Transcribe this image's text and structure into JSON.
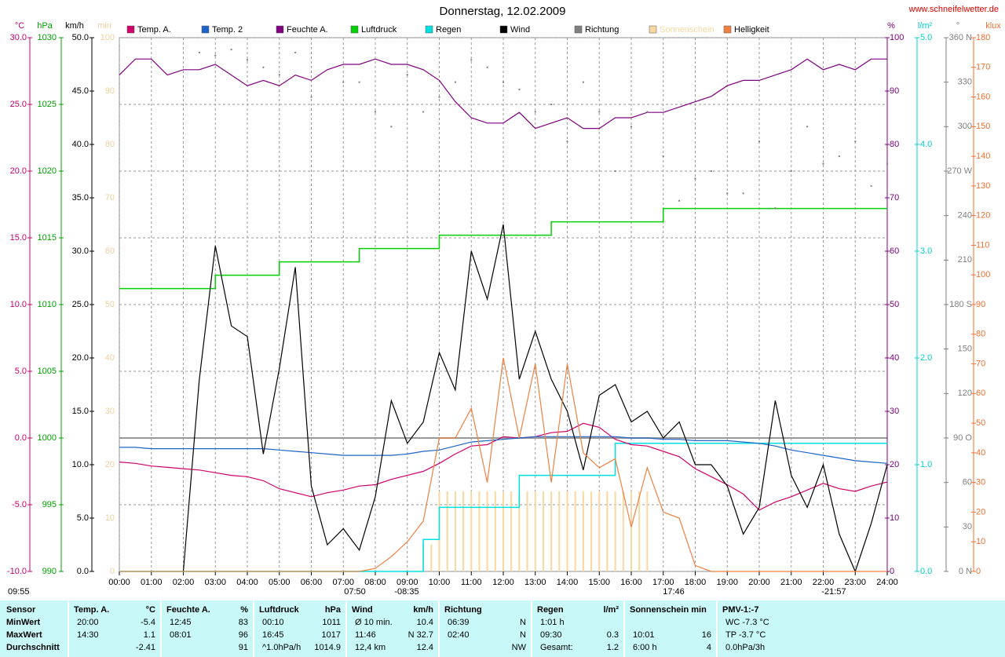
{
  "chart_data": {
    "type": "line",
    "title": "Donnerstag, 12.02.2009",
    "source": "www.schneifelwetter.de",
    "xlim": [
      0,
      24
    ],
    "xticks": [
      {
        "value": 0,
        "label": "00:00"
      },
      {
        "value": 1,
        "label": "01:00"
      },
      {
        "value": 2,
        "label": "02:00"
      },
      {
        "value": 3,
        "label": "03:00"
      },
      {
        "value": 4,
        "label": "04:00"
      },
      {
        "value": 5,
        "label": "05:00"
      },
      {
        "value": 6,
        "label": "06:00"
      },
      {
        "value": 7,
        "label": "07:00"
      },
      {
        "value": 8,
        "label": "08:00"
      },
      {
        "value": 9,
        "label": "09:00"
      },
      {
        "value": 10,
        "label": "10:00"
      },
      {
        "value": 11,
        "label": "11:00"
      },
      {
        "value": 12,
        "label": "12:00"
      },
      {
        "value": 13,
        "label": "13:00"
      },
      {
        "value": 14,
        "label": "14:00"
      },
      {
        "value": 15,
        "label": "15:00"
      },
      {
        "value": 16,
        "label": "16:00"
      },
      {
        "value": 17,
        "label": "17:00"
      },
      {
        "value": 18,
        "label": "18:00"
      },
      {
        "value": 19,
        "label": "19:00"
      },
      {
        "value": 20,
        "label": "20:00"
      },
      {
        "value": 21,
        "label": "21:00"
      },
      {
        "value": 22,
        "label": "22:00"
      },
      {
        "value": 23,
        "label": "23:00"
      },
      {
        "value": 24,
        "label": "24:00"
      }
    ],
    "grid": true,
    "axes": [
      {
        "label": "°C",
        "color": "#c8006e",
        "lim": [
          -10,
          30
        ],
        "ticks": [
          {
            "value": -10,
            "label": "-10.0"
          },
          {
            "value": -5,
            "label": "-5.0"
          },
          {
            "value": 0,
            "label": "0.0"
          },
          {
            "value": 5,
            "label": "5.0"
          },
          {
            "value": 10,
            "label": "10.0"
          },
          {
            "value": 15,
            "label": "15.0"
          },
          {
            "value": 20,
            "label": "20.0"
          },
          {
            "value": 25,
            "label": "25.0"
          },
          {
            "value": 30,
            "label": "30.0"
          }
        ]
      },
      {
        "label": "hPa",
        "color": "#00a000",
        "lim": [
          990,
          1030
        ],
        "ticks": [
          990,
          995,
          1000,
          1005,
          1010,
          1015,
          1020,
          1025,
          1030
        ]
      },
      {
        "label": "km/h",
        "color": "#000000",
        "lim": [
          0,
          50
        ],
        "ticks": [
          {
            "value": 0,
            "label": "0.0"
          },
          {
            "value": 5,
            "label": "5.0"
          },
          {
            "value": 10,
            "label": "10.0"
          },
          {
            "value": 15,
            "label": "15.0"
          },
          {
            "value": 20,
            "label": "20.0"
          },
          {
            "value": 25,
            "label": "25.0"
          },
          {
            "value": 30,
            "label": "30.0"
          },
          {
            "value": 35,
            "label": "35.0"
          },
          {
            "value": 40,
            "label": "40.0"
          },
          {
            "value": 45,
            "label": "45.0"
          },
          {
            "value": 50,
            "label": "50.0"
          }
        ]
      },
      {
        "label": "min",
        "color": "#f0d0a0",
        "lim": [
          0,
          100
        ],
        "ticks": [
          0,
          10,
          20,
          30,
          40,
          50,
          60,
          70,
          80,
          90,
          100
        ]
      },
      {
        "label": "%",
        "color": "#800080",
        "lim": [
          0,
          100
        ],
        "ticks": [
          0,
          10,
          20,
          30,
          40,
          50,
          60,
          70,
          80,
          90,
          100
        ]
      },
      {
        "label": "l/m²",
        "color": "#00d0d0",
        "lim": [
          0,
          5
        ],
        "ticks": [
          {
            "value": 0,
            "label": "0.0"
          },
          {
            "value": 1,
            "label": "1.0"
          },
          {
            "value": 2,
            "label": "2.0"
          },
          {
            "value": 3,
            "label": "3.0"
          },
          {
            "value": 4,
            "label": "4.0"
          },
          {
            "value": 5,
            "label": "5.0"
          }
        ]
      },
      {
        "label": "°",
        "color": "#808080",
        "lim": [
          0,
          360
        ],
        "ticks": [
          {
            "value": 0,
            "label": "0 N"
          },
          30,
          60,
          {
            "value": 90,
            "label": "90 O"
          },
          120,
          150,
          {
            "value": 180,
            "label": "180 S"
          },
          210,
          240,
          {
            "value": 270,
            "label": "270 W"
          },
          300,
          330,
          {
            "value": 360,
            "label": "360 N"
          }
        ]
      },
      {
        "label": "klux",
        "color": "#f07030",
        "lim": [
          0,
          180
        ],
        "ticks": [
          0,
          10,
          20,
          30,
          40,
          50,
          60,
          70,
          80,
          90,
          100,
          110,
          120,
          130,
          140,
          150,
          160,
          170,
          180
        ]
      }
    ],
    "x": [
      0,
      0.5,
      1,
      1.5,
      2,
      2.5,
      3,
      3.5,
      4,
      4.5,
      5,
      5.5,
      6,
      6.5,
      7,
      7.5,
      8,
      8.5,
      9,
      9.5,
      10,
      10.5,
      11,
      11.5,
      12,
      12.5,
      13,
      13.5,
      14,
      14.5,
      15,
      15.5,
      16,
      16.5,
      17,
      17.5,
      18,
      18.5,
      19,
      19.5,
      20,
      20.5,
      21,
      21.5,
      22,
      22.5,
      23,
      23.5,
      24
    ],
    "series": [
      {
        "name": "Temp. A.",
        "color": "#d0006a",
        "axis": 0,
        "style": "line",
        "values": [
          -1.8,
          -1.9,
          -2.1,
          -2.2,
          -2.3,
          -2.4,
          -2.6,
          -2.8,
          -2.9,
          -3.2,
          -3.8,
          -4.1,
          -4.4,
          -4.1,
          -3.9,
          -3.6,
          -3.5,
          -3.1,
          -2.8,
          -2.5,
          -1.9,
          -1.2,
          -0.6,
          -0.5,
          0.1,
          0.0,
          0.1,
          0.4,
          0.5,
          1.1,
          0.8,
          -0.1,
          -0.5,
          -0.6,
          -1.0,
          -1.4,
          -2.3,
          -2.9,
          -3.5,
          -4.2,
          -5.4,
          -4.8,
          -4.4,
          -3.9,
          -3.4,
          -3.8,
          -4.0,
          -3.6,
          -3.3
        ]
      },
      {
        "name": "Temp. 2",
        "color": "#1e64c8",
        "axis": 0,
        "style": "line",
        "values": [
          -0.7,
          -0.7,
          -0.8,
          -0.8,
          -0.8,
          -0.8,
          -0.8,
          -0.8,
          -0.8,
          -0.8,
          -0.9,
          -1.0,
          -1.1,
          -1.2,
          -1.3,
          -1.3,
          -1.3,
          -1.3,
          -1.2,
          -1.0,
          -0.9,
          -0.6,
          -0.3,
          -0.2,
          -0.1,
          0.0,
          0.1,
          0.1,
          0.1,
          0.1,
          0.1,
          0.1,
          0.0,
          0.0,
          -0.1,
          -0.1,
          -0.2,
          -0.2,
          -0.2,
          -0.3,
          -0.4,
          -0.6,
          -0.9,
          -1.1,
          -1.3,
          -1.5,
          -1.7,
          -1.8,
          -1.9
        ]
      },
      {
        "name": "Feuchte A.",
        "color": "#800080",
        "axis": 4,
        "style": "line",
        "values": [
          93,
          96,
          96,
          93,
          94,
          94,
          95,
          93,
          91,
          92,
          91,
          93,
          92,
          94,
          95,
          95,
          96,
          95,
          95,
          94,
          92,
          88,
          85,
          84,
          84,
          86,
          83,
          84,
          85,
          83,
          83,
          85,
          85,
          86,
          86,
          87,
          88,
          89,
          91,
          92,
          92,
          93,
          94,
          96,
          94,
          95,
          94,
          96,
          96
        ]
      },
      {
        "name": "Luftdruck",
        "color": "#00d000",
        "axis": 1,
        "style": "step",
        "values": [
          1011.2,
          1011.2,
          1011.2,
          1011.2,
          1011.2,
          1011.2,
          1012.2,
          1012.2,
          1012.2,
          1012.2,
          1013.2,
          1013.2,
          1013.2,
          1013.2,
          1013.2,
          1014.2,
          1014.2,
          1014.2,
          1014.2,
          1014.2,
          1015.2,
          1015.2,
          1015.2,
          1015.2,
          1015.2,
          1015.2,
          1015.2,
          1016.2,
          1016.2,
          1016.2,
          1016.2,
          1016.2,
          1016.2,
          1016.2,
          1017.2,
          1017.2,
          1017.2,
          1017.2,
          1017.2,
          1017.2,
          1017.2,
          1017.2,
          1017.2,
          1017.2,
          1017.2,
          1017.2,
          1017.2,
          1017.2,
          1017.2
        ]
      },
      {
        "name": "Regen",
        "color": "#00e0e0",
        "axis": 5,
        "style": "step",
        "values": [
          0,
          0,
          0,
          0,
          0,
          0,
          0,
          0,
          0,
          0,
          0,
          0,
          0,
          0,
          0,
          0,
          0,
          0,
          0,
          0.3,
          0.6,
          0.6,
          0.6,
          0.6,
          0.6,
          0.9,
          0.9,
          0.9,
          0.9,
          0.9,
          0.9,
          1.2,
          1.2,
          1.2,
          1.2,
          1.2,
          1.2,
          1.2,
          1.2,
          1.2,
          1.2,
          1.2,
          1.2,
          1.2,
          1.2,
          1.2,
          1.2,
          1.2,
          1.2
        ]
      },
      {
        "name": "Wind",
        "color": "#000000",
        "axis": 2,
        "style": "line",
        "values": [
          null,
          null,
          null,
          null,
          0,
          18,
          30.5,
          23,
          22,
          11,
          19,
          28.5,
          8,
          2.5,
          4,
          2,
          7,
          16,
          12,
          14,
          20.5,
          17,
          30,
          25.5,
          32.5,
          18,
          22.5,
          18,
          15,
          9.5,
          16.5,
          17.5,
          14,
          15,
          12.5,
          14,
          10,
          10,
          8,
          3.5,
          6,
          16,
          9,
          6,
          10,
          3.5,
          0,
          4.5,
          10
        ]
      },
      {
        "name": "Richtung",
        "color": "#808080",
        "axis": 6,
        "style": "dots",
        "values": [
          null,
          null,
          null,
          null,
          null,
          350,
          348,
          352,
          345,
          340,
          335,
          350,
          320,
          null,
          330,
          330,
          310,
          300,
          335,
          310,
          320,
          330,
          345,
          340,
          330,
          325,
          310,
          315,
          290,
          330,
          310,
          270,
          300,
          310,
          280,
          250,
          265,
          270,
          255,
          255,
          290,
          245,
          270,
          300,
          275,
          280,
          290,
          260,
          275
        ]
      },
      {
        "name": "Sonnenschein",
        "color": "#f8d8a0",
        "axis": 3,
        "style": "bars",
        "x": [
          9.5,
          9.75,
          10,
          10.25,
          10.5,
          10.75,
          11,
          11.25,
          11.5,
          11.75,
          12,
          12.25,
          12.5,
          12.75,
          13,
          13.25,
          13.5,
          13.75,
          14,
          14.25,
          14.5,
          14.75,
          15,
          15.25,
          15.5,
          15.75,
          16,
          16.25,
          16.5
        ],
        "values": [
          5,
          5,
          15,
          15,
          15,
          15,
          15,
          15,
          15,
          15,
          15,
          15,
          15,
          15,
          15,
          15,
          15,
          15,
          15,
          15,
          15,
          15,
          15,
          15,
          15,
          15,
          15,
          15,
          15
        ]
      },
      {
        "name": "Helligkeit",
        "color": "#f08040",
        "axis": 7,
        "style": "line",
        "values": [
          0,
          0,
          0,
          0,
          0,
          0,
          0,
          0,
          0,
          0,
          0,
          0,
          0,
          0,
          0,
          0,
          1,
          5,
          10,
          17,
          45,
          45,
          55,
          30,
          72,
          45,
          70,
          30,
          70,
          40,
          35,
          38,
          15,
          35,
          20,
          18,
          2,
          0,
          0,
          0,
          0,
          0,
          0,
          0,
          0,
          0,
          0,
          0,
          0
        ]
      }
    ],
    "annotations": [
      "09:55",
      "07:50",
      "-08:35",
      "17:46",
      "-21:57"
    ],
    "table": {
      "labels": [
        "Sensor",
        "MinWert",
        "MaxWert",
        "Durchschnitt"
      ],
      "groups": [
        {
          "title": "Temp. A.",
          "unit": "°C",
          "rows": [
            {
              "left": "20:00",
              "right": "-5.4"
            },
            {
              "left": "14:30",
              "right": "1.1"
            },
            {
              "right": "-2.41"
            }
          ]
        },
        {
          "title": "Feuchte A.",
          "unit": "%",
          "rows": [
            {
              "left": "12:45",
              "right": "83"
            },
            {
              "left": "08:01",
              "right": "96"
            },
            {
              "right": "91"
            }
          ]
        },
        {
          "title": "Luftdruck",
          "unit": "hPa",
          "rows": [
            {
              "left": "00:10",
              "right": "1011"
            },
            {
              "left": "16:45",
              "right": "1017"
            },
            {
              "left": "^1.0hPa/h",
              "right": "1014.9"
            }
          ]
        },
        {
          "title": "Wind",
          "unit": "km/h",
          "rows": [
            {
              "left": "Ø 10 min.",
              "right": "10.4"
            },
            {
              "left": "11:46",
              "right": "N 32.7"
            },
            {
              "left": "12,4 km",
              "right": "12.4"
            }
          ]
        },
        {
          "title": "Richtung",
          "rows": [
            {
              "left": "06:39",
              "right": "N"
            },
            {
              "left": "02:40",
              "right": "N"
            },
            {
              "right": "NW"
            }
          ]
        },
        {
          "title": "Regen",
          "unit": "l/m²",
          "rows": [
            {
              "left": "1:01 h"
            },
            {
              "left": "09:30",
              "right": "0.3"
            },
            {
              "left": "Gesamt:",
              "right": "1.2"
            }
          ]
        },
        {
          "title": "Sonnenschein min",
          "rows": [
            {},
            {
              "left": "10:01",
              "right": "16"
            },
            {
              "left": "6:00 h",
              "right": "4"
            }
          ]
        },
        {
          "title": "PMV-1:-7",
          "rows": [
            {
              "left": "WC -7.3 °C"
            },
            {
              "left": "TP -3.7 °C"
            },
            {
              "left": "0.0hPa/3h"
            }
          ]
        }
      ]
    }
  }
}
